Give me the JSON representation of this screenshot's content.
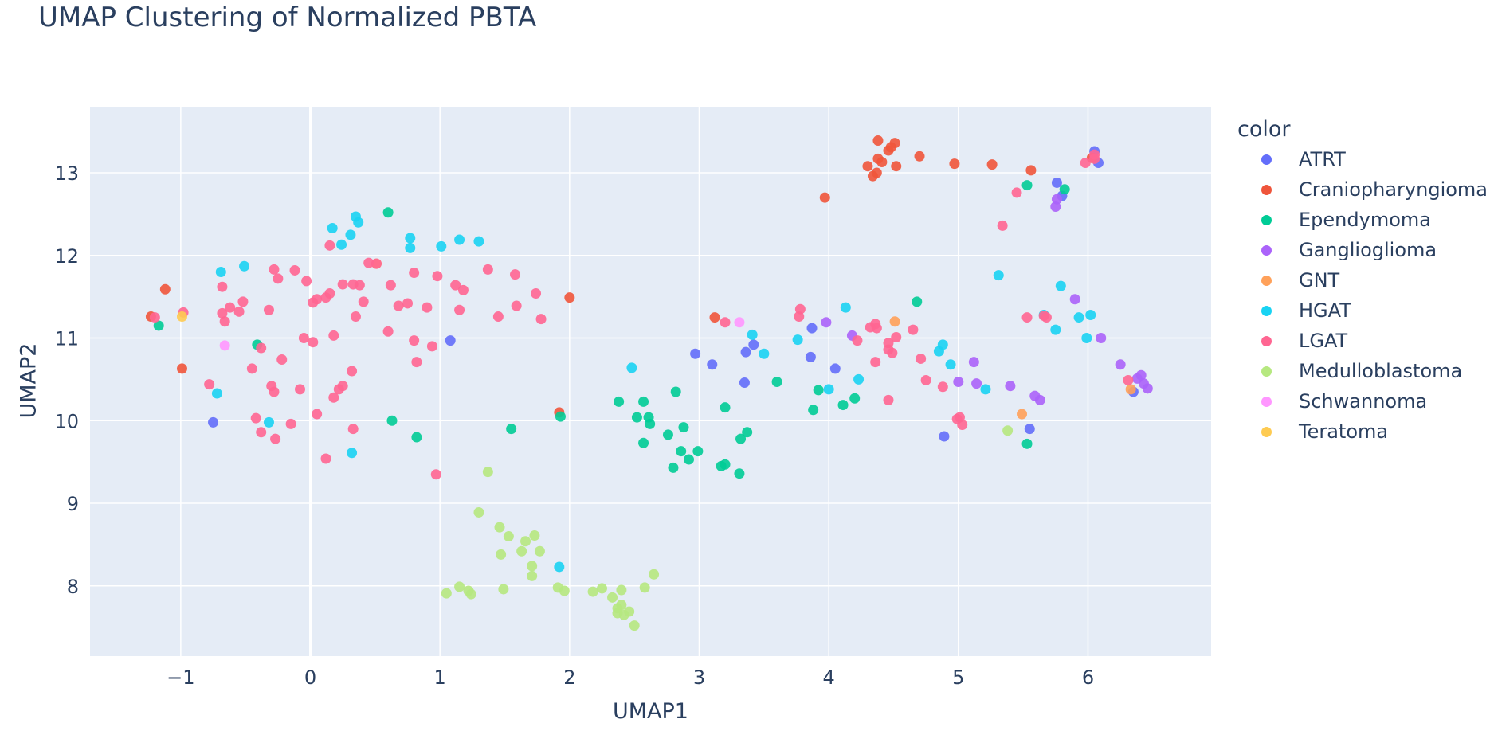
{
  "chart_data": {
    "type": "scatter",
    "title": "UMAP Clustering of Normalized PBTA",
    "xlabel": "UMAP1",
    "ylabel": "UMAP2",
    "xlim": [
      -1.7,
      6.95
    ],
    "ylim": [
      7.15,
      13.8
    ],
    "xticks": [
      -1,
      0,
      1,
      2,
      3,
      4,
      5,
      6
    ],
    "xtick_labels": [
      "−1",
      "0",
      "1",
      "2",
      "3",
      "4",
      "5",
      "6"
    ],
    "yticks": [
      8,
      9,
      10,
      11,
      12,
      13
    ],
    "ytick_labels": [
      "8",
      "9",
      "10",
      "11",
      "12",
      "13"
    ],
    "grid": true,
    "legend_title": "color",
    "legend_position": "right",
    "series": [
      {
        "name": "ATRT",
        "color": "#636efa",
        "points": [
          [
            -0.75,
            9.98
          ],
          [
            1.08,
            10.97
          ],
          [
            2.97,
            10.81
          ],
          [
            3.1,
            10.68
          ],
          [
            3.36,
            10.83
          ],
          [
            3.42,
            10.92
          ],
          [
            3.35,
            10.46
          ],
          [
            3.86,
            10.77
          ],
          [
            3.87,
            11.12
          ],
          [
            4.05,
            10.63
          ],
          [
            4.89,
            9.81
          ],
          [
            5.76,
            12.88
          ],
          [
            5.8,
            12.72
          ],
          [
            6.05,
            13.26
          ],
          [
            6.08,
            13.12
          ],
          [
            5.55,
            9.9
          ],
          [
            6.35,
            10.35
          ]
        ]
      },
      {
        "name": "Craniopharyngioma",
        "color": "#ef553b",
        "points": [
          [
            -1.23,
            11.26
          ],
          [
            -1.12,
            11.59
          ],
          [
            -0.99,
            10.63
          ],
          [
            1.92,
            10.1
          ],
          [
            2.0,
            11.49
          ],
          [
            3.12,
            11.25
          ],
          [
            3.97,
            12.7
          ],
          [
            4.3,
            13.08
          ],
          [
            4.37,
            13.0
          ],
          [
            4.34,
            12.96
          ],
          [
            4.38,
            13.39
          ],
          [
            4.38,
            13.17
          ],
          [
            4.41,
            13.13
          ],
          [
            4.46,
            13.27
          ],
          [
            4.48,
            13.31
          ],
          [
            4.51,
            13.36
          ],
          [
            4.52,
            13.08
          ],
          [
            4.7,
            13.2
          ],
          [
            4.97,
            13.11
          ],
          [
            5.26,
            13.1
          ],
          [
            5.56,
            13.03
          ],
          [
            6.03,
            13.18
          ]
        ]
      },
      {
        "name": "Ependymoma",
        "color": "#00cc96",
        "points": [
          [
            -1.17,
            11.15
          ],
          [
            -0.41,
            10.92
          ],
          [
            0.6,
            12.52
          ],
          [
            0.63,
            10.0
          ],
          [
            0.82,
            9.8
          ],
          [
            1.55,
            9.9
          ],
          [
            1.93,
            10.05
          ],
          [
            2.38,
            10.23
          ],
          [
            2.52,
            10.04
          ],
          [
            2.57,
            10.23
          ],
          [
            2.57,
            9.73
          ],
          [
            2.61,
            10.04
          ],
          [
            2.62,
            9.96
          ],
          [
            2.76,
            9.83
          ],
          [
            2.8,
            9.43
          ],
          [
            2.82,
            10.35
          ],
          [
            2.86,
            9.63
          ],
          [
            2.88,
            9.92
          ],
          [
            2.92,
            9.53
          ],
          [
            2.99,
            9.63
          ],
          [
            3.17,
            9.45
          ],
          [
            3.2,
            9.47
          ],
          [
            3.2,
            10.16
          ],
          [
            3.31,
            9.36
          ],
          [
            3.32,
            9.78
          ],
          [
            3.37,
            9.86
          ],
          [
            3.6,
            10.47
          ],
          [
            3.88,
            10.13
          ],
          [
            3.92,
            10.37
          ],
          [
            4.11,
            10.19
          ],
          [
            4.2,
            10.27
          ],
          [
            4.68,
            11.44
          ],
          [
            5.53,
            12.85
          ],
          [
            5.82,
            12.8
          ],
          [
            5.53,
            9.72
          ]
        ]
      },
      {
        "name": "Ganglioglioma",
        "color": "#ab63fa",
        "points": [
          [
            3.98,
            11.19
          ],
          [
            4.18,
            11.03
          ],
          [
            5.0,
            10.47
          ],
          [
            5.12,
            10.71
          ],
          [
            5.14,
            10.45
          ],
          [
            5.4,
            10.42
          ],
          [
            5.59,
            10.3
          ],
          [
            5.63,
            10.25
          ],
          [
            5.75,
            12.59
          ],
          [
            5.76,
            12.68
          ],
          [
            5.9,
            11.47
          ],
          [
            6.1,
            11.0
          ],
          [
            6.25,
            10.68
          ],
          [
            6.38,
            10.51
          ],
          [
            6.41,
            10.55
          ],
          [
            6.43,
            10.45
          ],
          [
            6.46,
            10.39
          ]
        ]
      },
      {
        "name": "GNT",
        "color": "#ffa15a",
        "points": [
          [
            0.51,
            11.9
          ],
          [
            4.51,
            11.2
          ],
          [
            5.49,
            10.08
          ],
          [
            6.33,
            10.38
          ]
        ]
      },
      {
        "name": "HGAT",
        "color": "#19d3f3",
        "points": [
          [
            -0.69,
            11.8
          ],
          [
            -0.51,
            11.87
          ],
          [
            -0.72,
            10.33
          ],
          [
            -0.32,
            9.98
          ],
          [
            0.17,
            12.33
          ],
          [
            0.24,
            12.13
          ],
          [
            0.31,
            12.25
          ],
          [
            0.35,
            12.47
          ],
          [
            0.37,
            12.4
          ],
          [
            0.77,
            12.21
          ],
          [
            0.77,
            12.09
          ],
          [
            1.01,
            12.11
          ],
          [
            1.15,
            12.19
          ],
          [
            1.3,
            12.17
          ],
          [
            0.32,
            9.61
          ],
          [
            1.92,
            8.23
          ],
          [
            2.48,
            10.64
          ],
          [
            3.41,
            11.04
          ],
          [
            3.5,
            10.81
          ],
          [
            3.76,
            10.98
          ],
          [
            4.0,
            10.38
          ],
          [
            4.13,
            11.37
          ],
          [
            4.23,
            10.5
          ],
          [
            4.85,
            10.84
          ],
          [
            4.88,
            10.92
          ],
          [
            4.94,
            10.68
          ],
          [
            5.21,
            10.38
          ],
          [
            5.31,
            11.76
          ],
          [
            5.66,
            11.28
          ],
          [
            5.75,
            11.1
          ],
          [
            5.79,
            11.63
          ],
          [
            5.93,
            11.25
          ],
          [
            5.99,
            11.0
          ],
          [
            6.02,
            11.28
          ]
        ]
      },
      {
        "name": "LGAT",
        "color": "#ff6692",
        "points": [
          [
            -1.2,
            11.25
          ],
          [
            -0.98,
            11.31
          ],
          [
            -0.78,
            10.44
          ],
          [
            -0.68,
            11.62
          ],
          [
            -0.68,
            11.3
          ],
          [
            -0.66,
            11.2
          ],
          [
            -0.62,
            11.37
          ],
          [
            -0.55,
            11.32
          ],
          [
            -0.52,
            11.44
          ],
          [
            -0.45,
            10.63
          ],
          [
            -0.42,
            10.03
          ],
          [
            -0.38,
            10.88
          ],
          [
            -0.38,
            9.86
          ],
          [
            -0.32,
            11.34
          ],
          [
            -0.3,
            10.42
          ],
          [
            -0.28,
            10.35
          ],
          [
            -0.28,
            11.83
          ],
          [
            -0.25,
            11.72
          ],
          [
            -0.22,
            10.74
          ],
          [
            -0.12,
            11.82
          ],
          [
            -0.08,
            10.38
          ],
          [
            -0.05,
            11.0
          ],
          [
            -0.03,
            11.69
          ],
          [
            0.02,
            11.43
          ],
          [
            0.02,
            10.95
          ],
          [
            0.05,
            11.47
          ],
          [
            0.05,
            10.08
          ],
          [
            0.12,
            11.49
          ],
          [
            0.15,
            12.12
          ],
          [
            0.15,
            11.54
          ],
          [
            0.18,
            10.28
          ],
          [
            0.18,
            11.03
          ],
          [
            0.22,
            10.38
          ],
          [
            0.25,
            10.42
          ],
          [
            0.25,
            11.65
          ],
          [
            0.32,
            10.6
          ],
          [
            0.33,
            11.65
          ],
          [
            0.35,
            11.26
          ],
          [
            0.38,
            11.64
          ],
          [
            0.41,
            11.44
          ],
          [
            0.45,
            11.91
          ],
          [
            0.51,
            11.9
          ],
          [
            0.6,
            11.08
          ],
          [
            0.62,
            11.64
          ],
          [
            0.68,
            11.39
          ],
          [
            0.75,
            11.42
          ],
          [
            0.8,
            11.79
          ],
          [
            0.8,
            10.97
          ],
          [
            0.82,
            10.71
          ],
          [
            0.9,
            11.37
          ],
          [
            0.94,
            10.9
          ],
          [
            0.98,
            11.75
          ],
          [
            1.12,
            11.64
          ],
          [
            1.15,
            11.34
          ],
          [
            1.18,
            11.58
          ],
          [
            1.37,
            11.83
          ],
          [
            1.45,
            11.26
          ],
          [
            1.58,
            11.77
          ],
          [
            1.59,
            11.39
          ],
          [
            1.74,
            11.54
          ],
          [
            1.78,
            11.23
          ],
          [
            3.2,
            11.19
          ],
          [
            3.78,
            11.35
          ],
          [
            3.77,
            11.26
          ],
          [
            4.22,
            10.97
          ],
          [
            4.32,
            11.13
          ],
          [
            4.36,
            10.71
          ],
          [
            4.36,
            11.17
          ],
          [
            4.37,
            11.12
          ],
          [
            4.46,
            10.94
          ],
          [
            4.46,
            10.86
          ],
          [
            4.49,
            10.82
          ],
          [
            4.52,
            11.01
          ],
          [
            4.65,
            11.1
          ],
          [
            4.71,
            10.75
          ],
          [
            4.75,
            10.49
          ],
          [
            4.88,
            10.41
          ],
          [
            4.99,
            10.02
          ],
          [
            5.01,
            10.04
          ],
          [
            5.03,
            9.95
          ],
          [
            5.45,
            12.76
          ],
          [
            5.34,
            12.36
          ],
          [
            5.53,
            11.25
          ],
          [
            5.66,
            11.27
          ],
          [
            5.68,
            11.25
          ],
          [
            5.98,
            13.12
          ],
          [
            6.05,
            13.22
          ],
          [
            6.05,
            13.17
          ],
          [
            6.31,
            10.49
          ],
          [
            -0.27,
            9.78
          ],
          [
            -0.15,
            9.96
          ],
          [
            0.12,
            9.54
          ],
          [
            0.33,
            9.9
          ],
          [
            0.97,
            9.35
          ],
          [
            4.46,
            10.25
          ]
        ]
      },
      {
        "name": "Medulloblastoma",
        "color": "#b6e880",
        "points": [
          [
            1.05,
            7.91
          ],
          [
            1.15,
            7.99
          ],
          [
            1.22,
            7.94
          ],
          [
            1.24,
            7.9
          ],
          [
            1.3,
            8.89
          ],
          [
            1.37,
            9.38
          ],
          [
            1.46,
            8.71
          ],
          [
            1.47,
            8.38
          ],
          [
            1.49,
            7.96
          ],
          [
            1.53,
            8.6
          ],
          [
            1.63,
            8.42
          ],
          [
            1.66,
            8.54
          ],
          [
            1.71,
            8.12
          ],
          [
            1.71,
            8.24
          ],
          [
            1.73,
            8.61
          ],
          [
            1.77,
            8.42
          ],
          [
            1.91,
            7.98
          ],
          [
            1.96,
            7.94
          ],
          [
            2.18,
            7.93
          ],
          [
            2.25,
            7.97
          ],
          [
            2.33,
            7.86
          ],
          [
            2.37,
            7.73
          ],
          [
            2.37,
            7.67
          ],
          [
            2.4,
            7.95
          ],
          [
            2.4,
            7.77
          ],
          [
            2.42,
            7.65
          ],
          [
            2.46,
            7.69
          ],
          [
            2.5,
            7.52
          ],
          [
            2.58,
            7.98
          ],
          [
            2.65,
            8.14
          ],
          [
            5.38,
            9.88
          ]
        ]
      },
      {
        "name": "Schwannoma",
        "color": "#ff97ff",
        "points": [
          [
            -0.66,
            10.91
          ],
          [
            3.31,
            11.19
          ]
        ]
      },
      {
        "name": "Teratoma",
        "color": "#fecb52",
        "points": [
          [
            -0.99,
            11.26
          ]
        ]
      }
    ]
  }
}
